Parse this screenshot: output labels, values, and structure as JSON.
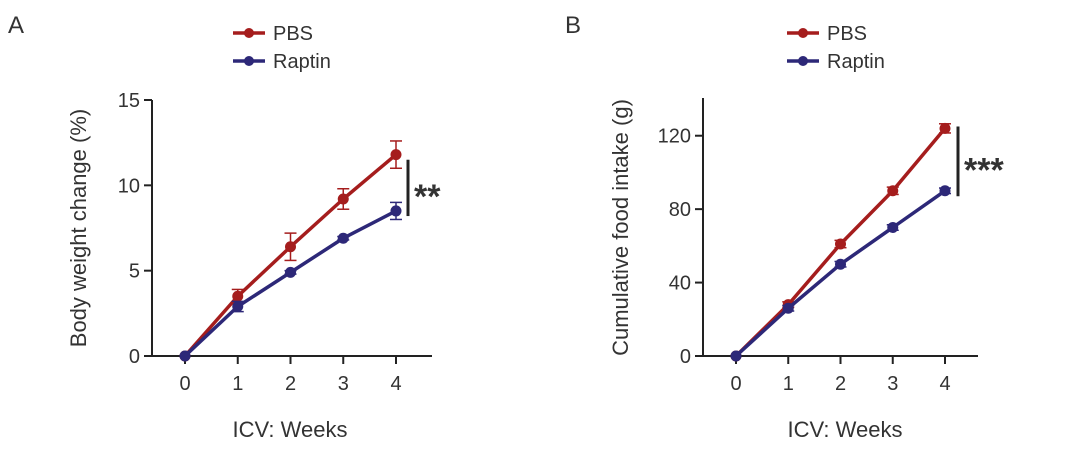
{
  "colors": {
    "pbs": "#a51d1d",
    "raptin": "#2d2878",
    "axis": "#222222",
    "text": "#333333"
  },
  "chart_data": [
    {
      "panel_label": "A",
      "type": "line",
      "xlabel": "ICV: Weeks",
      "ylabel": "Body weight change (%)",
      "x": [
        0,
        1,
        2,
        3,
        4
      ],
      "xticks": [
        "0",
        "1",
        "2",
        "3",
        "4"
      ],
      "yticks": [
        "0",
        "5",
        "10",
        "15"
      ],
      "ytick_values": [
        0,
        5,
        10,
        15
      ],
      "ylim": [
        0,
        15
      ],
      "legend": [
        "PBS",
        "Raptin"
      ],
      "legend_position": "top",
      "series": [
        {
          "name": "PBS",
          "values": [
            0,
            3.5,
            6.4,
            9.2,
            11.8
          ],
          "errors": [
            0,
            0.4,
            0.8,
            0.6,
            0.8
          ]
        },
        {
          "name": "Raptin",
          "values": [
            0,
            2.9,
            4.9,
            6.9,
            8.5
          ],
          "errors": [
            0,
            0.3,
            0.1,
            0.1,
            0.5
          ]
        }
      ],
      "significance": {
        "label": "**",
        "from": 11.5,
        "to": 8.2
      }
    },
    {
      "panel_label": "B",
      "type": "line",
      "xlabel": "ICV: Weeks",
      "ylabel": "Cumulative food intake (g)",
      "x": [
        0,
        1,
        2,
        3,
        4
      ],
      "xticks": [
        "0",
        "1",
        "2",
        "3",
        "4"
      ],
      "yticks": [
        "0",
        "40",
        "80",
        "120"
      ],
      "ytick_values": [
        0,
        40,
        80,
        120
      ],
      "ylim": [
        0,
        140
      ],
      "legend": [
        "PBS",
        "Raptin"
      ],
      "legend_position": "top",
      "series": [
        {
          "name": "PBS",
          "values": [
            0,
            28,
            61,
            90,
            124
          ],
          "errors": [
            0,
            1.5,
            2,
            2,
            2.5
          ]
        },
        {
          "name": "Raptin",
          "values": [
            0,
            26,
            50,
            70,
            90
          ],
          "errors": [
            0,
            1.5,
            1.5,
            1.5,
            1.5
          ]
        }
      ],
      "significance": {
        "label": "***",
        "from": 125,
        "to": 87
      }
    }
  ]
}
